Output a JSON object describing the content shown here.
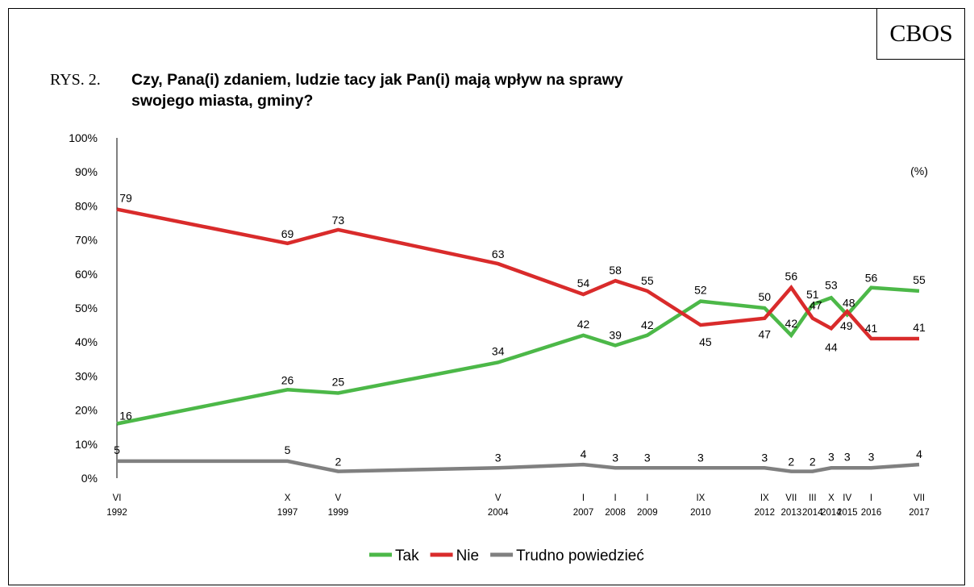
{
  "brand": "CBOS",
  "figure_label": "RYS. 2.",
  "title": "Czy, Pana(i) zdaniem, ludzie tacy jak Pan(i) mają wpływ na sprawy\nswojego miasta, gminy?",
  "unit_note": "(%)",
  "colors": {
    "tak": "#4cb848",
    "nie": "#d92b2b",
    "trudno": "#808080",
    "axis": "#000000"
  },
  "chart_data": {
    "type": "line",
    "title": "Czy, Pana(i) zdaniem, ludzie tacy jak Pan(i) mają wpływ na sprawy swojego miasta, gminy?",
    "xlabel": "",
    "ylabel": "",
    "ylim": [
      0,
      100
    ],
    "yticks": [
      "0%",
      "10%",
      "20%",
      "30%",
      "40%",
      "50%",
      "60%",
      "70%",
      "80%",
      "90%",
      "100%"
    ],
    "x": [
      {
        "month": "VI",
        "year": "1992",
        "date": "1992-06"
      },
      {
        "month": "X",
        "year": "1997",
        "date": "1997-10"
      },
      {
        "month": "V",
        "year": "1999",
        "date": "1999-05"
      },
      {
        "month": "V",
        "year": "2004",
        "date": "2004-05"
      },
      {
        "month": "I",
        "year": "2007",
        "date": "2007-01"
      },
      {
        "month": "I",
        "year": "2008",
        "date": "2008-01"
      },
      {
        "month": "I",
        "year": "2009",
        "date": "2009-01"
      },
      {
        "month": "IX",
        "year": "2010",
        "date": "2010-09"
      },
      {
        "month": "IX",
        "year": "2012",
        "date": "2012-09"
      },
      {
        "month": "VII",
        "year": "2013",
        "date": "2013-07"
      },
      {
        "month": "III",
        "year": "2014",
        "date": "2014-03"
      },
      {
        "month": "X",
        "year": "2014",
        "date": "2014-10"
      },
      {
        "month": "IV",
        "year": "2015",
        "date": "2015-04"
      },
      {
        "month": "I",
        "year": "2016",
        "date": "2016-01"
      },
      {
        "month": "VII",
        "year": "2017",
        "date": "2017-07"
      }
    ],
    "series": [
      {
        "key": "tak",
        "name": "Tak",
        "values": [
          16,
          26,
          25,
          34,
          42,
          39,
          42,
          52,
          50,
          42,
          51,
          53,
          48,
          56,
          55
        ]
      },
      {
        "key": "nie",
        "name": "Nie",
        "values": [
          79,
          69,
          73,
          63,
          54,
          58,
          55,
          45,
          47,
          56,
          47,
          44,
          49,
          41,
          41
        ]
      },
      {
        "key": "trudno",
        "name": "Trudno powiedzieć",
        "values": [
          5,
          5,
          2,
          3,
          4,
          3,
          3,
          3,
          3,
          2,
          2,
          3,
          3,
          3,
          4
        ]
      }
    ],
    "grid": false,
    "legend_position": "bottom"
  }
}
